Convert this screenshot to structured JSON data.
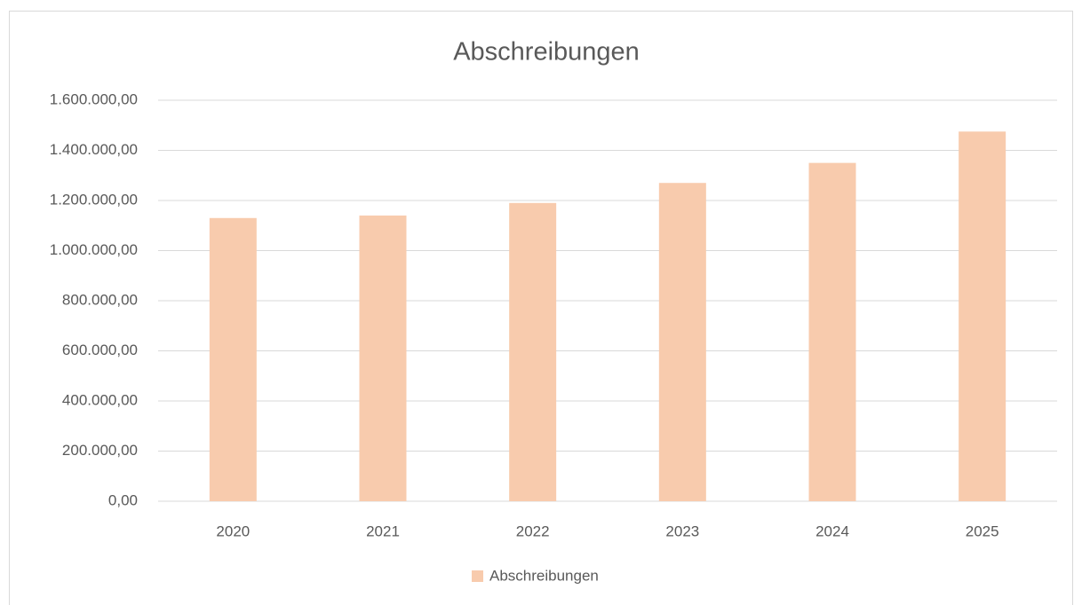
{
  "chart_data": {
    "type": "bar",
    "title": "Abschreibungen",
    "categories": [
      "2020",
      "2021",
      "2022",
      "2023",
      "2024",
      "2025"
    ],
    "series": [
      {
        "name": "Abschreibungen",
        "color": "#f8cbad",
        "values": [
          1130000,
          1140000,
          1190000,
          1270000,
          1350000,
          1475000
        ]
      }
    ],
    "ylim": [
      0,
      1600000
    ],
    "yticks": [
      {
        "value": 0,
        "label": "0,00"
      },
      {
        "value": 200000,
        "label": "200.000,00"
      },
      {
        "value": 400000,
        "label": "400.000,00"
      },
      {
        "value": 600000,
        "label": "600.000,00"
      },
      {
        "value": 800000,
        "label": "800.000,00"
      },
      {
        "value": 1000000,
        "label": "1.000.000,00"
      },
      {
        "value": 1200000,
        "label": "1.200.000,00"
      },
      {
        "value": 1400000,
        "label": "1.400.000,00"
      },
      {
        "value": 1600000,
        "label": "1.600.000,00"
      }
    ],
    "grid": true,
    "legend": "bottom"
  }
}
